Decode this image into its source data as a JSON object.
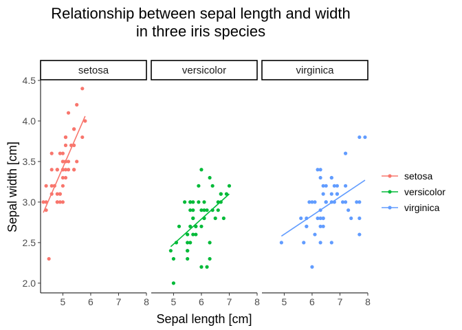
{
  "chart_data": {
    "type": "scatter",
    "title_lines": [
      "Relationship between sepal length and width",
      "in three iris species"
    ],
    "xlabel": "Sepal length [cm]",
    "ylabel": "Sepal width [cm]",
    "xlim": [
      4.2,
      8.0
    ],
    "ylim": [
      1.88,
      4.5
    ],
    "x_ticks": [
      5,
      6,
      7,
      8
    ],
    "y_ticks": [
      2.0,
      2.5,
      3.0,
      3.5,
      4.0,
      4.5
    ],
    "y_tick_labels": [
      "2.0",
      "2.5",
      "3.0",
      "3.5",
      "4.0",
      "4.5"
    ],
    "grid": false,
    "legend_position": "right",
    "panels": [
      {
        "strip": "setosa",
        "color": "#F8766D",
        "trend": {
          "x": [
            4.3,
            5.8
          ],
          "y": [
            2.87,
            4.06
          ]
        },
        "points": [
          [
            5.1,
            3.5
          ],
          [
            4.9,
            3.0
          ],
          [
            4.7,
            3.2
          ],
          [
            4.6,
            3.1
          ],
          [
            5.0,
            3.6
          ],
          [
            5.4,
            3.9
          ],
          [
            4.6,
            3.4
          ],
          [
            5.0,
            3.4
          ],
          [
            4.4,
            2.9
          ],
          [
            4.9,
            3.1
          ],
          [
            5.4,
            3.7
          ],
          [
            4.8,
            3.4
          ],
          [
            4.8,
            3.0
          ],
          [
            4.3,
            3.0
          ],
          [
            5.8,
            4.0
          ],
          [
            5.7,
            4.4
          ],
          [
            5.4,
            3.9
          ],
          [
            5.1,
            3.5
          ],
          [
            5.7,
            3.8
          ],
          [
            5.1,
            3.8
          ],
          [
            5.4,
            3.4
          ],
          [
            5.1,
            3.7
          ],
          [
            4.6,
            3.6
          ],
          [
            5.1,
            3.3
          ],
          [
            4.8,
            3.4
          ],
          [
            5.0,
            3.0
          ],
          [
            5.0,
            3.4
          ],
          [
            5.2,
            3.5
          ],
          [
            5.2,
            3.4
          ],
          [
            4.7,
            3.2
          ],
          [
            4.8,
            3.1
          ],
          [
            5.4,
            3.4
          ],
          [
            5.2,
            4.1
          ],
          [
            5.5,
            4.2
          ],
          [
            4.9,
            3.1
          ],
          [
            5.0,
            3.2
          ],
          [
            5.5,
            3.5
          ],
          [
            4.9,
            3.6
          ],
          [
            4.4,
            3.0
          ],
          [
            5.1,
            3.4
          ],
          [
            5.0,
            3.5
          ],
          [
            4.5,
            2.3
          ],
          [
            4.4,
            3.2
          ],
          [
            5.0,
            3.5
          ],
          [
            5.1,
            3.8
          ],
          [
            4.8,
            3.0
          ],
          [
            5.1,
            3.8
          ],
          [
            4.6,
            3.2
          ],
          [
            5.3,
            3.7
          ],
          [
            5.0,
            3.3
          ]
        ]
      },
      {
        "strip": "versicolor",
        "color": "#00BA38",
        "trend": {
          "x": [
            4.9,
            7.0
          ],
          "y": [
            2.45,
            3.1
          ]
        },
        "points": [
          [
            7.0,
            3.2
          ],
          [
            6.4,
            3.2
          ],
          [
            6.9,
            3.1
          ],
          [
            5.5,
            2.3
          ],
          [
            6.5,
            2.8
          ],
          [
            5.7,
            2.8
          ],
          [
            6.3,
            3.3
          ],
          [
            4.9,
            2.4
          ],
          [
            6.6,
            2.9
          ],
          [
            5.2,
            2.7
          ],
          [
            5.0,
            2.0
          ],
          [
            5.9,
            3.0
          ],
          [
            6.0,
            2.2
          ],
          [
            6.1,
            2.9
          ],
          [
            5.6,
            2.9
          ],
          [
            6.7,
            3.1
          ],
          [
            5.6,
            3.0
          ],
          [
            5.8,
            2.7
          ],
          [
            6.2,
            2.2
          ],
          [
            5.6,
            2.5
          ],
          [
            5.9,
            3.2
          ],
          [
            6.1,
            2.8
          ],
          [
            6.3,
            2.5
          ],
          [
            6.1,
            2.8
          ],
          [
            6.4,
            2.9
          ],
          [
            6.6,
            3.0
          ],
          [
            6.8,
            2.8
          ],
          [
            6.7,
            3.0
          ],
          [
            6.0,
            2.9
          ],
          [
            5.7,
            2.6
          ],
          [
            5.5,
            2.4
          ],
          [
            5.5,
            2.4
          ],
          [
            5.8,
            2.7
          ],
          [
            6.0,
            2.7
          ],
          [
            5.4,
            3.0
          ],
          [
            6.0,
            3.4
          ],
          [
            6.7,
            3.1
          ],
          [
            6.3,
            2.3
          ],
          [
            5.6,
            3.0
          ],
          [
            5.5,
            2.5
          ],
          [
            5.5,
            2.6
          ],
          [
            6.1,
            3.0
          ],
          [
            5.8,
            2.6
          ],
          [
            5.0,
            2.3
          ],
          [
            5.6,
            2.7
          ],
          [
            5.7,
            3.0
          ],
          [
            5.7,
            2.9
          ],
          [
            6.2,
            2.9
          ],
          [
            5.1,
            2.5
          ],
          [
            5.7,
            2.8
          ]
        ]
      },
      {
        "strip": "virginica",
        "color": "#619CFF",
        "trend": {
          "x": [
            4.9,
            7.9
          ],
          "y": [
            2.58,
            3.27
          ]
        },
        "points": [
          [
            6.3,
            3.3
          ],
          [
            5.8,
            2.7
          ],
          [
            7.1,
            3.0
          ],
          [
            6.3,
            2.9
          ],
          [
            6.5,
            3.0
          ],
          [
            7.6,
            3.0
          ],
          [
            4.9,
            2.5
          ],
          [
            7.3,
            2.9
          ],
          [
            6.7,
            2.5
          ],
          [
            7.2,
            3.6
          ],
          [
            6.5,
            3.2
          ],
          [
            6.4,
            2.7
          ],
          [
            6.8,
            3.0
          ],
          [
            5.7,
            2.5
          ],
          [
            5.8,
            2.8
          ],
          [
            6.4,
            3.2
          ],
          [
            6.5,
            3.0
          ],
          [
            7.7,
            3.8
          ],
          [
            7.7,
            2.6
          ],
          [
            6.0,
            2.2
          ],
          [
            6.9,
            3.2
          ],
          [
            5.6,
            2.8
          ],
          [
            7.7,
            2.8
          ],
          [
            6.3,
            2.7
          ],
          [
            6.7,
            3.3
          ],
          [
            7.2,
            3.2
          ],
          [
            6.2,
            2.8
          ],
          [
            6.1,
            3.0
          ],
          [
            6.4,
            2.8
          ],
          [
            7.2,
            3.0
          ],
          [
            7.4,
            2.8
          ],
          [
            7.9,
            3.8
          ],
          [
            6.4,
            2.8
          ],
          [
            6.3,
            2.8
          ],
          [
            6.1,
            2.6
          ],
          [
            7.7,
            3.0
          ],
          [
            6.3,
            3.4
          ],
          [
            6.4,
            3.1
          ],
          [
            6.0,
            3.0
          ],
          [
            6.9,
            3.1
          ],
          [
            6.7,
            3.1
          ],
          [
            6.9,
            3.1
          ],
          [
            5.8,
            2.7
          ],
          [
            6.8,
            3.2
          ],
          [
            6.7,
            3.3
          ],
          [
            6.7,
            3.0
          ],
          [
            6.3,
            2.5
          ],
          [
            6.5,
            3.0
          ],
          [
            6.2,
            3.4
          ],
          [
            5.9,
            3.0
          ]
        ]
      }
    ],
    "legend": [
      {
        "label": "setosa",
        "color": "#F8766D"
      },
      {
        "label": "versicolor",
        "color": "#00BA38"
      },
      {
        "label": "virginica",
        "color": "#619CFF"
      }
    ]
  }
}
